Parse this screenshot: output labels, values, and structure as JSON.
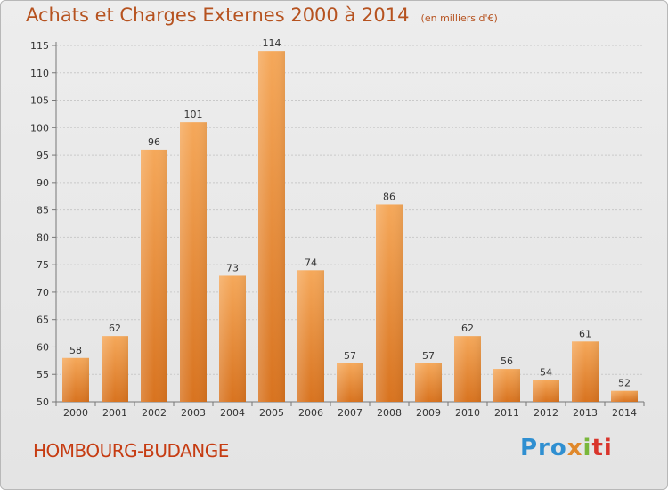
{
  "header": {
    "title": "Achats et Charges Externes 2000 à 2014",
    "unit": "(en milliers d'€)"
  },
  "commune": "HOMBOURG-BUDANGE",
  "logo": {
    "p1": "Pro",
    "p2": "x",
    "p3": "i",
    "p4": "ti"
  },
  "chart_data": {
    "type": "bar",
    "title": "Achats et Charges Externes 2000 à 2014",
    "subtitle": "(en milliers d'€)",
    "xlabel": "",
    "ylabel": "",
    "categories": [
      "2000",
      "2001",
      "2002",
      "2003",
      "2004",
      "2005",
      "2006",
      "2007",
      "2008",
      "2009",
      "2010",
      "2011",
      "2012",
      "2013",
      "2014"
    ],
    "values": [
      58,
      62,
      96,
      101,
      73,
      114,
      74,
      57,
      86,
      57,
      62,
      56,
      54,
      61,
      52
    ],
    "ylim": [
      50,
      115
    ],
    "yticks": [
      50,
      55,
      60,
      65,
      70,
      75,
      80,
      85,
      90,
      95,
      100,
      105,
      110,
      115
    ],
    "grid": true,
    "colors": {
      "bar": "#e07f2f",
      "bar_light": "#f2a45a",
      "grid": "#c8c8c8"
    }
  }
}
